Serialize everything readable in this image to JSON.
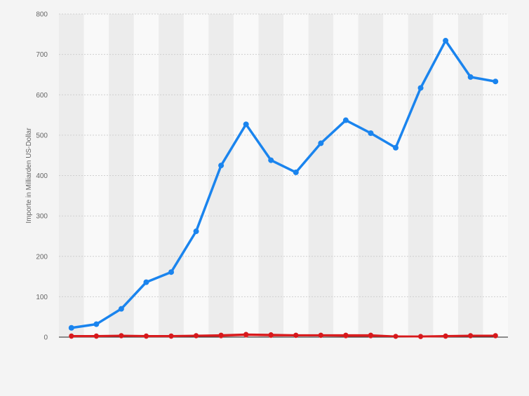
{
  "chart_data": {
    "type": "line",
    "title": "",
    "xlabel": "",
    "ylabel": "Importe in Milliarden US-Dollar",
    "ylim": [
      0,
      800
    ],
    "yticks": [
      "0",
      "100",
      "200",
      "300",
      "400",
      "500",
      "600",
      "700",
      "800"
    ],
    "grid": true,
    "legend": "none",
    "x": [
      1,
      2,
      3,
      4,
      5,
      6,
      7,
      8,
      9,
      10,
      11,
      12,
      13,
      14,
      15,
      16,
      17,
      18
    ],
    "series": [
      {
        "color": "#1a84ee",
        "values": [
          23,
          32,
          70,
          136,
          161,
          262,
          425,
          527,
          438,
          408,
          480,
          537,
          505,
          469,
          617,
          734,
          644,
          633
        ]
      },
      {
        "color": "#d7191c",
        "values": [
          3,
          3,
          4,
          3,
          3,
          4,
          5,
          7,
          6,
          5,
          5,
          5,
          5,
          2,
          2,
          3,
          4,
          4
        ]
      },
      {
        "color": "#e83030",
        "values": [
          2,
          2,
          3,
          2,
          2,
          3,
          3,
          5,
          4,
          4,
          4,
          3,
          3,
          2,
          1,
          2,
          3,
          3
        ]
      }
    ]
  }
}
